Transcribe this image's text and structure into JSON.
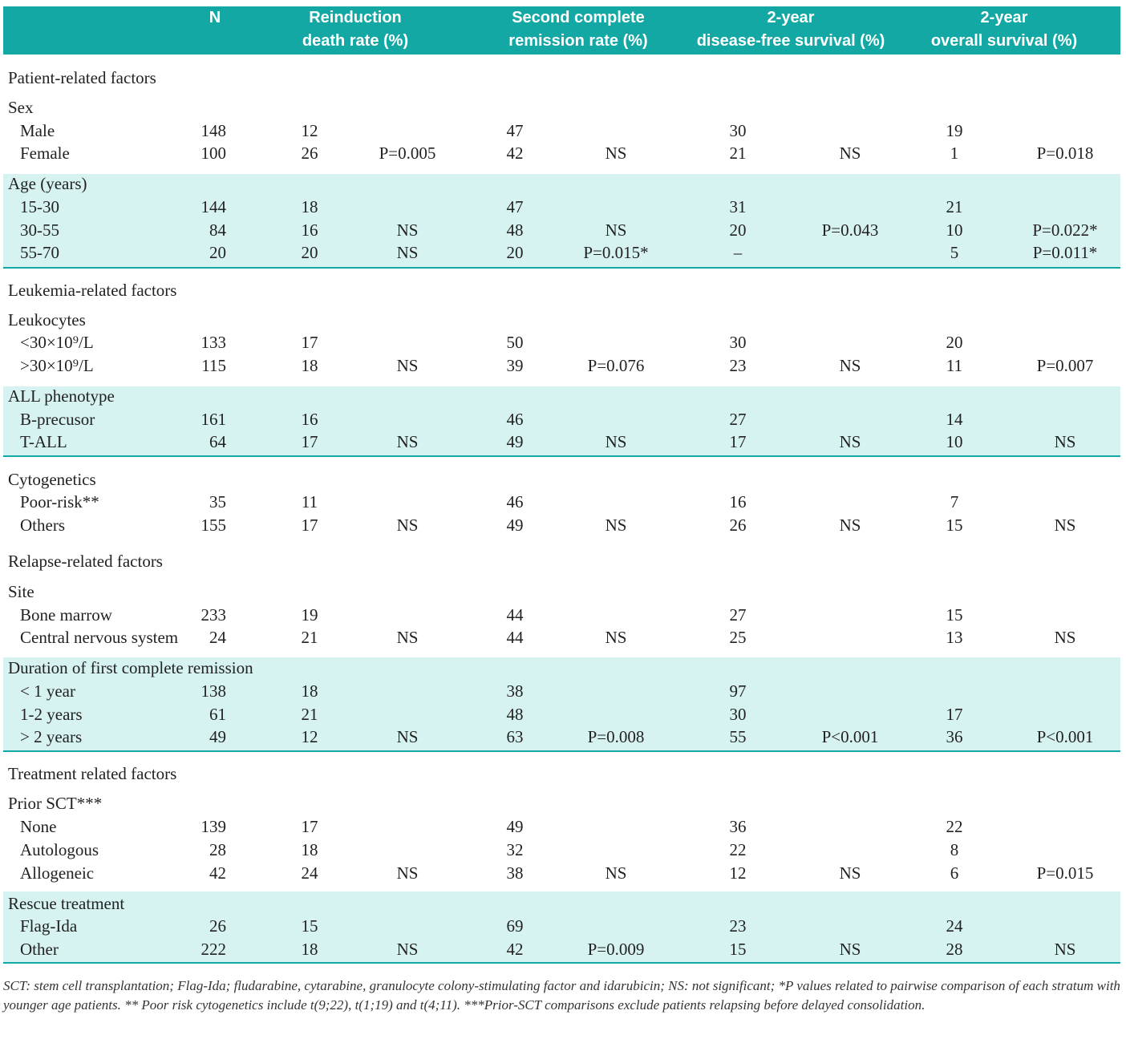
{
  "header": {
    "columns": [
      [
        "N"
      ],
      [
        "Reinduction",
        "death rate (%)"
      ],
      [
        "Second complete",
        "remission rate (%)"
      ],
      [
        "2-year",
        "disease-free survival (%)"
      ],
      [
        "2-year",
        "overall survival (%)"
      ]
    ]
  },
  "table": {
    "groups": [
      {
        "rows": [
          {
            "label": "Patient-related factors"
          },
          {
            "label": "Sex"
          },
          {
            "label": "Male",
            "cells": [
              148,
              12,
              null,
              47,
              null,
              30,
              null,
              19,
              null
            ]
          },
          {
            "label": "Female",
            "cells": [
              100,
              26,
              "P=0.005",
              42,
              "NS",
              21,
              "NS",
              1,
              "P=0.018"
            ]
          }
        ]
      },
      {
        "rows": [
          {
            "label": "Age (years)"
          },
          {
            "label": "15-30",
            "cells": [
              144,
              18,
              null,
              47,
              null,
              31,
              null,
              21,
              null
            ]
          },
          {
            "label": "30-55",
            "cells": [
              84,
              16,
              "NS",
              48,
              "NS",
              20,
              "P=0.043",
              10,
              "P=0.022*"
            ]
          },
          {
            "label": "55-70",
            "cells": [
              20,
              20,
              "NS",
              20,
              "P=0.015*",
              "–",
              null,
              5,
              "P=0.011*"
            ]
          }
        ]
      },
      {
        "rows": [
          {
            "label": "Leukemia-related factors"
          },
          {
            "label": "Leukocytes"
          },
          {
            "label": "<30×10⁹/L",
            "cells": [
              133,
              17,
              null,
              50,
              null,
              30,
              null,
              20,
              null
            ]
          },
          {
            "label": ">30×10⁹/L",
            "cells": [
              115,
              18,
              "NS",
              39,
              "P=0.076",
              23,
              "NS",
              11,
              "P=0.007"
            ]
          }
        ]
      },
      {
        "rows": [
          {
            "label": "ALL phenotype"
          },
          {
            "label": "B-precusor",
            "cells": [
              161,
              16,
              null,
              46,
              null,
              27,
              null,
              14,
              null
            ]
          },
          {
            "label": "T-ALL",
            "cells": [
              64,
              17,
              "NS",
              49,
              "NS",
              17,
              "NS",
              10,
              "NS"
            ]
          }
        ]
      },
      {
        "rows": [
          {
            "label": "Cytogenetics"
          },
          {
            "label": "Poor-risk**",
            "cells": [
              35,
              11,
              null,
              46,
              null,
              16,
              null,
              7,
              null
            ]
          },
          {
            "label": "Others",
            "cells": [
              155,
              17,
              "NS",
              49,
              "NS",
              26,
              "NS",
              15,
              "NS"
            ]
          },
          {
            "label": "Relapse-related factors"
          },
          {
            "label": "Site"
          },
          {
            "label": "Bone marrow",
            "cells": [
              233,
              19,
              null,
              44,
              null,
              27,
              null,
              15,
              null
            ]
          },
          {
            "label": "Central nervous system",
            "cells": [
              24,
              21,
              "NS",
              44,
              "NS",
              25,
              null,
              13,
              "NS"
            ]
          }
        ]
      },
      {
        "rows": [
          {
            "label": "Duration of first complete remission"
          },
          {
            "label": "< 1 year",
            "cells": [
              138,
              18,
              null,
              38,
              null,
              97,
              null,
              null,
              null
            ]
          },
          {
            "label": "1-2 years",
            "cells": [
              61,
              21,
              null,
              48,
              null,
              30,
              null,
              17,
              null
            ]
          },
          {
            "label": "> 2 years",
            "cells": [
              49,
              12,
              "NS",
              63,
              "P=0.008",
              55,
              "P<0.001",
              36,
              "P<0.001"
            ]
          }
        ]
      },
      {
        "rows": [
          {
            "label": "Treatment related factors"
          },
          {
            "label": "Prior SCT***"
          },
          {
            "label": "None",
            "cells": [
              139,
              17,
              null,
              49,
              null,
              36,
              null,
              22,
              null
            ]
          },
          {
            "label": "Autologous",
            "cells": [
              28,
              18,
              null,
              32,
              null,
              22,
              null,
              8,
              null
            ]
          },
          {
            "label": "Allogeneic",
            "cells": [
              42,
              24,
              "NS",
              38,
              "NS",
              12,
              "NS",
              6,
              "P=0.015"
            ]
          }
        ]
      },
      {
        "rows": [
          {
            "label": "Rescue treatment"
          },
          {
            "label": "Flag-Ida",
            "cells": [
              26,
              15,
              null,
              69,
              null,
              23,
              null,
              24,
              null
            ]
          },
          {
            "label": "Other",
            "cells": [
              222,
              18,
              "NS",
              42,
              "P=0.009",
              15,
              "NS",
              28,
              "NS"
            ]
          }
        ]
      }
    ]
  },
  "footnote": "SCT: stem cell transplantation; Flag-Ida; fludarabine, cytarabine, granulocyte colony-stimulating factor and idarubicin; NS: not significant; *P values related to pairwise comparison of each stratum with younger age patients. ** Poor risk cytogenetics include t(9;22), t(1;19) and t(4;11). ***Prior-SCT comparisons exclude patients relapsing before delayed consolidation."
}
